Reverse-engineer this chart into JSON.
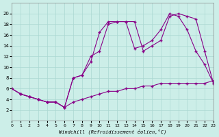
{
  "xlabel": "Windchill (Refroidissement éolien,°C)",
  "bg_color": "#cceee8",
  "grid_color": "#aad8d2",
  "line_color": "#880088",
  "line1_x": [
    0,
    1,
    2,
    3,
    4,
    5,
    6,
    7,
    8,
    9,
    10,
    11,
    12,
    13,
    14,
    15,
    16,
    17,
    18,
    19,
    20,
    21,
    22,
    23
  ],
  "line1_y": [
    6,
    5,
    4.5,
    4,
    3.5,
    3.5,
    2.5,
    3.5,
    4,
    4.5,
    5,
    5.5,
    5.5,
    6,
    6,
    6.5,
    6.5,
    7,
    7,
    7,
    7,
    7,
    7,
    7.5
  ],
  "line2_x": [
    0,
    1,
    2,
    3,
    4,
    5,
    6,
    7,
    8,
    9,
    10,
    11,
    12,
    13,
    14,
    15,
    16,
    17,
    18,
    19,
    20,
    21,
    22,
    23
  ],
  "line2_y": [
    6,
    5,
    4.5,
    4,
    3.5,
    3.5,
    2.5,
    8,
    8.5,
    12,
    13,
    18,
    18.5,
    18.5,
    13.5,
    14,
    15,
    17,
    20,
    19.5,
    17,
    13,
    10.5,
    7
  ],
  "line3_x": [
    0,
    1,
    2,
    3,
    4,
    5,
    6,
    7,
    8,
    9,
    10,
    11,
    12,
    13,
    14,
    15,
    16,
    17,
    18,
    19,
    20,
    21,
    22,
    23
  ],
  "line3_y": [
    6,
    5,
    4.5,
    4,
    3.5,
    3.5,
    2.5,
    8,
    8.5,
    11,
    16.5,
    18.5,
    18.5,
    18.5,
    18.5,
    13,
    14,
    15,
    19.5,
    20,
    19.5,
    19,
    13,
    7
  ],
  "xlim": [
    0,
    23
  ],
  "ylim": [
    0,
    22
  ],
  "xticks": [
    0,
    1,
    2,
    3,
    4,
    5,
    6,
    7,
    8,
    9,
    10,
    11,
    12,
    13,
    14,
    15,
    16,
    17,
    18,
    19,
    20,
    21,
    22,
    23
  ],
  "yticks": [
    2,
    4,
    6,
    8,
    10,
    12,
    14,
    16,
    18,
    20
  ],
  "marker": "+"
}
